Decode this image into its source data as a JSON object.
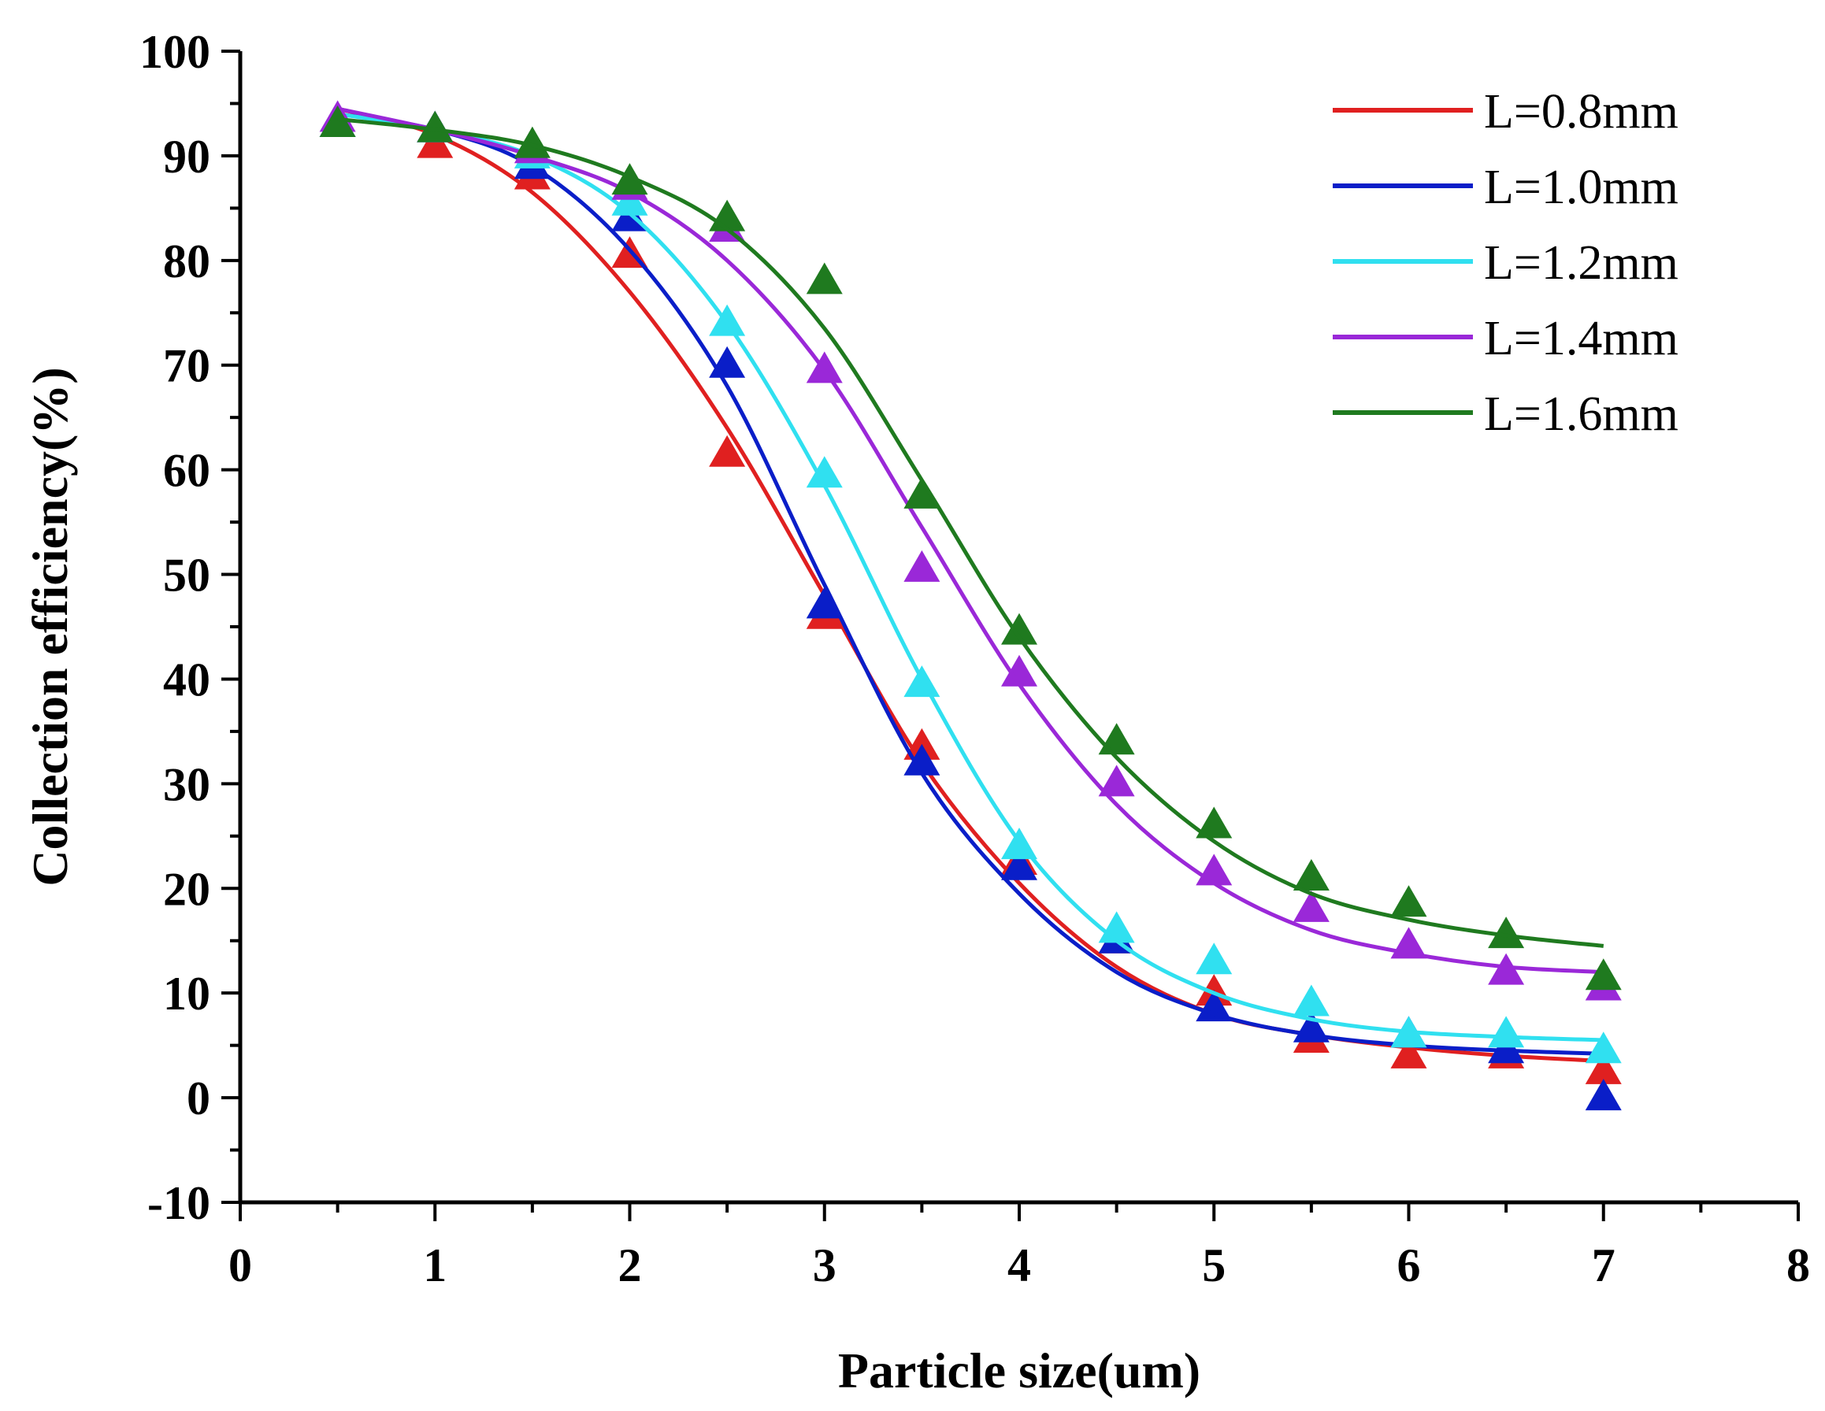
{
  "chart_data": {
    "type": "scatter",
    "title": "",
    "xlabel": "Particle size(um)",
    "ylabel": "Collection efficiency(%)",
    "xlim": [
      0,
      8
    ],
    "ylim": [
      -10,
      100
    ],
    "xticks": [
      0,
      1,
      2,
      3,
      4,
      5,
      6,
      7,
      8
    ],
    "yticks": [
      -10,
      0,
      10,
      20,
      30,
      40,
      50,
      60,
      70,
      80,
      90,
      100
    ],
    "xtick_labels": [
      "0",
      "1",
      "2",
      "3",
      "4",
      "5",
      "6",
      "7",
      "8"
    ],
    "ytick_labels": [
      "-10",
      "0",
      "10",
      "20",
      "30",
      "40",
      "50",
      "60",
      "70",
      "80",
      "90",
      "100"
    ],
    "legend_position": "top-right",
    "marker": "triangle",
    "x": [
      0.5,
      1,
      1.5,
      2,
      2.5,
      3,
      3.5,
      4,
      4.5,
      5,
      5.5,
      6,
      6.5,
      7
    ],
    "series": [
      {
        "name": "L=0.8mm",
        "color": "#e02020",
        "values": [
          93,
          91,
          88,
          80.5,
          61.5,
          46,
          33.5,
          22.5,
          15,
          10,
          5.5,
          4,
          4,
          2.5
        ],
        "fit_x": [
          0.5,
          1,
          1.5,
          2,
          2.5,
          3,
          3.5,
          4,
          4.5,
          5,
          5.5,
          6,
          6.5,
          7
        ],
        "fit": [
          94.5,
          92,
          86.5,
          77,
          64,
          48,
          32,
          20.5,
          12.5,
          8,
          6,
          4.8,
          4,
          3.5
        ]
      },
      {
        "name": "L=1.0mm",
        "color": "#0a1ec8",
        "values": [
          93,
          92.5,
          89,
          84,
          70,
          47,
          32,
          22,
          15,
          8.5,
          6.5,
          6,
          4.5,
          0
        ],
        "fit_x": [
          0.5,
          1,
          1.5,
          2,
          2.5,
          3,
          3.5,
          4,
          4.5,
          5,
          5.5,
          6,
          6.5,
          7
        ],
        "fit": [
          94,
          92.5,
          89,
          81,
          68,
          49,
          31,
          19.5,
          12,
          8,
          6,
          5,
          4.5,
          4.2
        ]
      },
      {
        "name": "L=1.2mm",
        "color": "#30e0f0",
        "values": [
          93,
          92.5,
          90,
          85.5,
          74,
          59.5,
          39.5,
          24,
          16,
          13,
          9,
          6,
          6,
          4.5
        ],
        "fit_x": [
          0.5,
          1,
          1.5,
          2,
          2.5,
          3,
          3.5,
          4,
          4.5,
          5,
          5.5,
          6,
          6.5,
          7
        ],
        "fit": [
          94,
          92.5,
          90,
          84.5,
          74,
          58.5,
          40,
          24.5,
          15,
          10,
          7.5,
          6.3,
          5.8,
          5.5
        ]
      },
      {
        "name": "L=1.4mm",
        "color": "#9a28d8",
        "values": [
          93.5,
          92.5,
          90.5,
          87,
          83,
          69.5,
          50.5,
          40.5,
          30,
          21.5,
          18,
          14.5,
          12,
          10.5
        ],
        "fit_x": [
          0.5,
          1,
          1.5,
          2,
          2.5,
          3,
          3.5,
          4,
          4.5,
          5,
          5.5,
          6,
          6.5,
          7
        ],
        "fit": [
          94.5,
          92.5,
          90,
          86.5,
          80,
          69.5,
          54.5,
          39.5,
          28,
          20.5,
          16,
          13.8,
          12.5,
          12
        ]
      },
      {
        "name": "L=1.6mm",
        "color": "#1f7a1f",
        "values": [
          93,
          92.5,
          91,
          87.5,
          84,
          78,
          57.5,
          44.5,
          34,
          26,
          21,
          18.5,
          15.5,
          11.5
        ],
        "fit_x": [
          0.5,
          1,
          1.5,
          2,
          2.5,
          3,
          3.5,
          4,
          4.5,
          5,
          5.5,
          6,
          6.5,
          7
        ],
        "fit": [
          93.5,
          92.5,
          91,
          88,
          83,
          73.5,
          59,
          44,
          32.5,
          24.5,
          19.5,
          17,
          15.5,
          14.5
        ]
      }
    ]
  }
}
